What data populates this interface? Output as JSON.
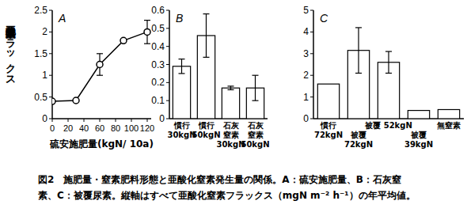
{
  "chart_data": [
    {
      "type": "line",
      "title": "A",
      "x": [
        0,
        30,
        60,
        90,
        120
      ],
      "values": [
        0.4,
        0.42,
        1.25,
        1.8,
        2.0
      ],
      "errors": [
        null,
        null,
        0.25,
        null,
        0.27
      ],
      "color": "#000000",
      "marker": "circle",
      "xlim": [
        0,
        125
      ],
      "xticks": [
        0,
        20,
        40,
        60,
        80,
        100,
        120
      ],
      "ylim": [
        0,
        2.5
      ],
      "yticks": [
        0,
        0.5,
        1,
        1.5,
        2,
        2.5
      ],
      "x_label": "硫安施肥量(kgN/ 10a)",
      "y_label": "亜酸化窒素フラックス"
    },
    {
      "type": "bar",
      "title": "B",
      "categories": [
        "慣行\n30kgN",
        "慣行\n50kgN",
        "石灰\n窒素\n30kgN",
        "石灰\n窒素\n50kgN"
      ],
      "values": [
        0.29,
        0.46,
        0.17,
        0.17
      ],
      "errors": [
        0.04,
        0.12,
        0.01,
        0.07
      ],
      "color": "#ffffff",
      "ylim": [
        0,
        0.6
      ],
      "yticks": [
        0,
        0.1,
        0.2,
        0.3,
        0.4,
        0.5,
        0.6
      ]
    },
    {
      "type": "bar",
      "title": "C",
      "categories": [
        "慣行\n72kgN",
        "被覆\n72kgN",
        "被覆 52kgN",
        "被覆\n39kgN",
        "無窒素"
      ],
      "values": [
        1.6,
        3.15,
        2.6,
        0.38,
        0.42
      ],
      "errors": [
        null,
        1.05,
        0.5,
        null,
        null
      ],
      "color": "#ffffff",
      "ylim": [
        0,
        5
      ],
      "yticks": [
        0,
        1,
        2,
        3,
        4,
        5
      ]
    }
  ],
  "caption": [
    "図2　施肥量・窒素肥料形態と亜酸化窒素発生量の関係。A：硫安施肥量、B：石灰窒",
    "素、C：被覆尿素。縦軸はすべて亜酸化窒素フラックス（mgN m⁻² h⁻¹）の年平均値。"
  ]
}
